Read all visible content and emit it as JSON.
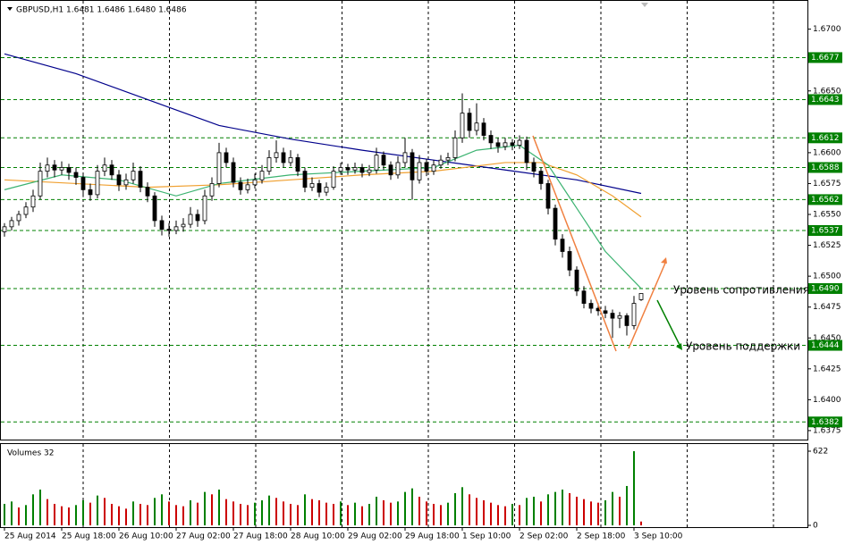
{
  "chart_data": {
    "type": "candlestick",
    "title": "GBPUSD,H1  1.6481 1.6486 1.6480 1.6486",
    "categories": [
      "25 Aug 2014",
      null,
      null,
      null,
      null,
      null,
      null,
      null,
      "25 Aug 18:00",
      null,
      null,
      null,
      null,
      null,
      null,
      null,
      "26 Aug 10:00",
      null,
      null,
      null,
      null,
      null,
      null,
      null,
      "27 Aug 02:00",
      null,
      null,
      null,
      null,
      null,
      null,
      null,
      "27 Aug 18:00",
      null,
      null,
      null,
      null,
      null,
      null,
      null,
      "28 Aug 10:00",
      null,
      null,
      null,
      null,
      null,
      null,
      null,
      "29 Aug 02:00",
      null,
      null,
      null,
      null,
      null,
      null,
      null,
      "29 Aug 18:00",
      null,
      null,
      null,
      null,
      null,
      null,
      null,
      "1 Sep 10:00",
      null,
      null,
      null,
      null,
      null,
      null,
      null,
      "2 Sep 02:00",
      null,
      null,
      null,
      null,
      null,
      null,
      null,
      "2 Sep 18:00",
      null,
      null,
      null,
      null,
      null,
      null,
      null,
      "3 Sep 10:00",
      null
    ],
    "ohlc": [
      [
        1.6536,
        1.6543,
        1.6532,
        1.654
      ],
      [
        1.654,
        1.6548,
        1.6537,
        1.6545
      ],
      [
        1.6545,
        1.6553,
        1.6541,
        1.655
      ],
      [
        1.655,
        1.656,
        1.6547,
        1.6556
      ],
      [
        1.6556,
        1.657,
        1.6552,
        1.6565
      ],
      [
        1.6565,
        1.6592,
        1.6562,
        1.6585
      ],
      [
        1.6585,
        1.6596,
        1.658,
        1.659
      ],
      [
        1.659,
        1.6594,
        1.658,
        1.6586
      ],
      [
        1.6586,
        1.6593,
        1.6582,
        1.6588
      ],
      [
        1.6588,
        1.6591,
        1.6578,
        1.6584
      ],
      [
        1.6584,
        1.6588,
        1.6574,
        1.658
      ],
      [
        1.658,
        1.6584,
        1.6564,
        1.657
      ],
      [
        1.657,
        1.6575,
        1.6561,
        1.6566
      ],
      [
        1.6566,
        1.659,
        1.6563,
        1.6585
      ],
      [
        1.6585,
        1.6596,
        1.6581,
        1.659
      ],
      [
        1.659,
        1.6594,
        1.6578,
        1.6582
      ],
      [
        1.6582,
        1.6586,
        1.6569,
        1.6574
      ],
      [
        1.6574,
        1.6583,
        1.657,
        1.6578
      ],
      [
        1.6578,
        1.6592,
        1.6575,
        1.6585
      ],
      [
        1.6585,
        1.6589,
        1.6568,
        1.6572
      ],
      [
        1.6572,
        1.6576,
        1.656,
        1.6565
      ],
      [
        1.6565,
        1.6568,
        1.654,
        1.6545
      ],
      [
        1.6545,
        1.6549,
        1.6533,
        1.6538
      ],
      [
        1.6538,
        1.6543,
        1.6532,
        1.6537
      ],
      [
        1.6537,
        1.6545,
        1.6534,
        1.654
      ],
      [
        1.654,
        1.6547,
        1.6536,
        1.6542
      ],
      [
        1.6542,
        1.6556,
        1.6539,
        1.655
      ],
      [
        1.655,
        1.6554,
        1.654,
        1.6545
      ],
      [
        1.6545,
        1.657,
        1.6542,
        1.6565
      ],
      [
        1.6565,
        1.658,
        1.6561,
        1.6575
      ],
      [
        1.6575,
        1.6608,
        1.6572,
        1.66
      ],
      [
        1.66,
        1.6604,
        1.6588,
        1.6592
      ],
      [
        1.6592,
        1.6596,
        1.6572,
        1.6576
      ],
      [
        1.6576,
        1.658,
        1.6566,
        1.657
      ],
      [
        1.657,
        1.6579,
        1.6567,
        1.6574
      ],
      [
        1.6574,
        1.6583,
        1.6571,
        1.6578
      ],
      [
        1.6578,
        1.659,
        1.6575,
        1.6585
      ],
      [
        1.6585,
        1.6602,
        1.6582,
        1.6596
      ],
      [
        1.6596,
        1.661,
        1.6592,
        1.66
      ],
      [
        1.66,
        1.6604,
        1.6588,
        1.6592
      ],
      [
        1.6592,
        1.6602,
        1.6589,
        1.6596
      ],
      [
        1.6596,
        1.6599,
        1.6581,
        1.6585
      ],
      [
        1.6585,
        1.6588,
        1.6568,
        1.6572
      ],
      [
        1.6572,
        1.658,
        1.6569,
        1.6575
      ],
      [
        1.6575,
        1.6578,
        1.6564,
        1.6568
      ],
      [
        1.6568,
        1.6576,
        1.6565,
        1.6572
      ],
      [
        1.6572,
        1.6589,
        1.657,
        1.6585
      ],
      [
        1.6585,
        1.6592,
        1.6582,
        1.6588
      ],
      [
        1.6588,
        1.6591,
        1.6582,
        1.6586
      ],
      [
        1.6586,
        1.6592,
        1.6583,
        1.6588
      ],
      [
        1.6588,
        1.6591,
        1.658,
        1.6584
      ],
      [
        1.6584,
        1.659,
        1.6581,
        1.6586
      ],
      [
        1.6586,
        1.6604,
        1.6583,
        1.6598
      ],
      [
        1.6598,
        1.6601,
        1.6586,
        1.659
      ],
      [
        1.659,
        1.6593,
        1.6578,
        1.6582
      ],
      [
        1.6582,
        1.6597,
        1.6579,
        1.6592
      ],
      [
        1.6592,
        1.6612,
        1.6588,
        1.66
      ],
      [
        1.66,
        1.6603,
        1.6562,
        1.6578
      ],
      [
        1.6578,
        1.6598,
        1.6575,
        1.6592
      ],
      [
        1.6592,
        1.6595,
        1.6581,
        1.6585
      ],
      [
        1.6585,
        1.6594,
        1.6582,
        1.659
      ],
      [
        1.659,
        1.6598,
        1.6587,
        1.6594
      ],
      [
        1.6594,
        1.66,
        1.659,
        1.6596
      ],
      [
        1.6596,
        1.6618,
        1.6593,
        1.6612
      ],
      [
        1.6612,
        1.6648,
        1.6608,
        1.6632
      ],
      [
        1.6632,
        1.6636,
        1.6612,
        1.6618
      ],
      [
        1.6618,
        1.664,
        1.6614,
        1.6624
      ],
      [
        1.6624,
        1.6628,
        1.661,
        1.6614
      ],
      [
        1.6614,
        1.6618,
        1.6603,
        1.6608
      ],
      [
        1.6608,
        1.6612,
        1.66,
        1.6605
      ],
      [
        1.6605,
        1.6612,
        1.6602,
        1.6608
      ],
      [
        1.6608,
        1.6611,
        1.6602,
        1.6606
      ],
      [
        1.6606,
        1.6614,
        1.6603,
        1.661
      ],
      [
        1.661,
        1.6613,
        1.6586,
        1.6592
      ],
      [
        1.6592,
        1.6596,
        1.658,
        1.6585
      ],
      [
        1.6585,
        1.6588,
        1.657,
        1.6575
      ],
      [
        1.6575,
        1.6578,
        1.655,
        1.6555
      ],
      [
        1.6555,
        1.6558,
        1.6525,
        1.653
      ],
      [
        1.653,
        1.6534,
        1.6515,
        1.652
      ],
      [
        1.652,
        1.6524,
        1.65,
        1.6505
      ],
      [
        1.6505,
        1.6508,
        1.6484,
        1.6488
      ],
      [
        1.6488,
        1.6492,
        1.6474,
        1.6478
      ],
      [
        1.6478,
        1.6481,
        1.647,
        1.6474
      ],
      [
        1.6474,
        1.6478,
        1.6468,
        1.6472
      ],
      [
        1.6472,
        1.6476,
        1.6466,
        1.647
      ],
      [
        1.647,
        1.6473,
        1.645,
        1.6466
      ],
      [
        1.6466,
        1.6471,
        1.6458,
        1.6468
      ],
      [
        1.6468,
        1.647,
        1.6452,
        1.646
      ],
      [
        1.646,
        1.6484,
        1.6457,
        1.6478
      ],
      [
        1.6481,
        1.6486,
        1.648,
        1.6486
      ]
    ],
    "ylim": [
      1.6367,
      1.672
    ],
    "yticks": [
      {
        "value": 1.67,
        "label": "1.6700"
      },
      {
        "value": 1.665,
        "label": "1.6650"
      },
      {
        "value": 1.66,
        "label": "1.6600"
      },
      1.6575,
      {
        "value": 1.655,
        "label": "1.6550"
      },
      1.6525,
      {
        "value": 1.65,
        "label": "1.6500"
      },
      1.6475,
      {
        "value": 1.645,
        "label": "1.6450"
      },
      1.6425,
      {
        "value": 1.64,
        "label": "1.6400"
      },
      1.6375
    ],
    "moving_averages": [
      {
        "color": "#00008b",
        "x": [
          0,
          10,
          20,
          30,
          40,
          50,
          60,
          70,
          80,
          89
        ],
        "values": [
          1.668,
          1.6664,
          1.6643,
          1.6622,
          1.6611,
          1.6602,
          1.6594,
          1.6586,
          1.6578,
          1.6567
        ]
      },
      {
        "color": "#f0a030",
        "x": [
          0,
          10,
          20,
          30,
          40,
          50,
          60,
          70,
          75,
          80,
          85,
          89
        ],
        "values": [
          1.6578,
          1.6575,
          1.6572,
          1.6574,
          1.6578,
          1.6582,
          1.6585,
          1.6592,
          1.6592,
          1.6582,
          1.6565,
          1.6548
        ]
      },
      {
        "color": "#3cb371",
        "x": [
          0,
          8,
          16,
          24,
          30,
          40,
          50,
          60,
          66,
          72,
          76,
          80,
          84,
          89
        ],
        "values": [
          1.657,
          1.6582,
          1.6578,
          1.6565,
          1.6575,
          1.6582,
          1.6585,
          1.6588,
          1.6602,
          1.6606,
          1.659,
          1.6555,
          1.652,
          1.649
        ]
      }
    ],
    "levels": [
      1.6677,
      1.6643,
      1.6612,
      1.6588,
      1.6562,
      1.6537,
      {
        "value": 1.649,
        "label": "1.6490"
      },
      1.6444,
      1.6382
    ],
    "level_color": "#008000",
    "annotations": [
      "Уровень сопротивления",
      "Уровень поддержки"
    ],
    "volume": {
      "title": "Volumes 32",
      "values": [
        180,
        200,
        150,
        170,
        260,
        300,
        220,
        180,
        160,
        150,
        170,
        210,
        190,
        250,
        230,
        180,
        160,
        140,
        200,
        180,
        170,
        230,
        260,
        200,
        170,
        160,
        210,
        190,
        280,
        260,
        300,
        220,
        200,
        180,
        170,
        190,
        210,
        250,
        230,
        200,
        180,
        170,
        260,
        220,
        210,
        190,
        180,
        200,
        170,
        190,
        160,
        180,
        240,
        210,
        190,
        200,
        280,
        310,
        240,
        200,
        180,
        170,
        190,
        270,
        320,
        260,
        230,
        210,
        190,
        170,
        160,
        180,
        170,
        230,
        240,
        200,
        260,
        280,
        300,
        270,
        240,
        220,
        200,
        190,
        210,
        280,
        240,
        330,
        622,
        32
      ],
      "ylim": [
        0,
        622
      ],
      "yticks": [
        0,
        622
      ],
      "up_color": "#008000",
      "down_color": "#cc0000"
    }
  }
}
